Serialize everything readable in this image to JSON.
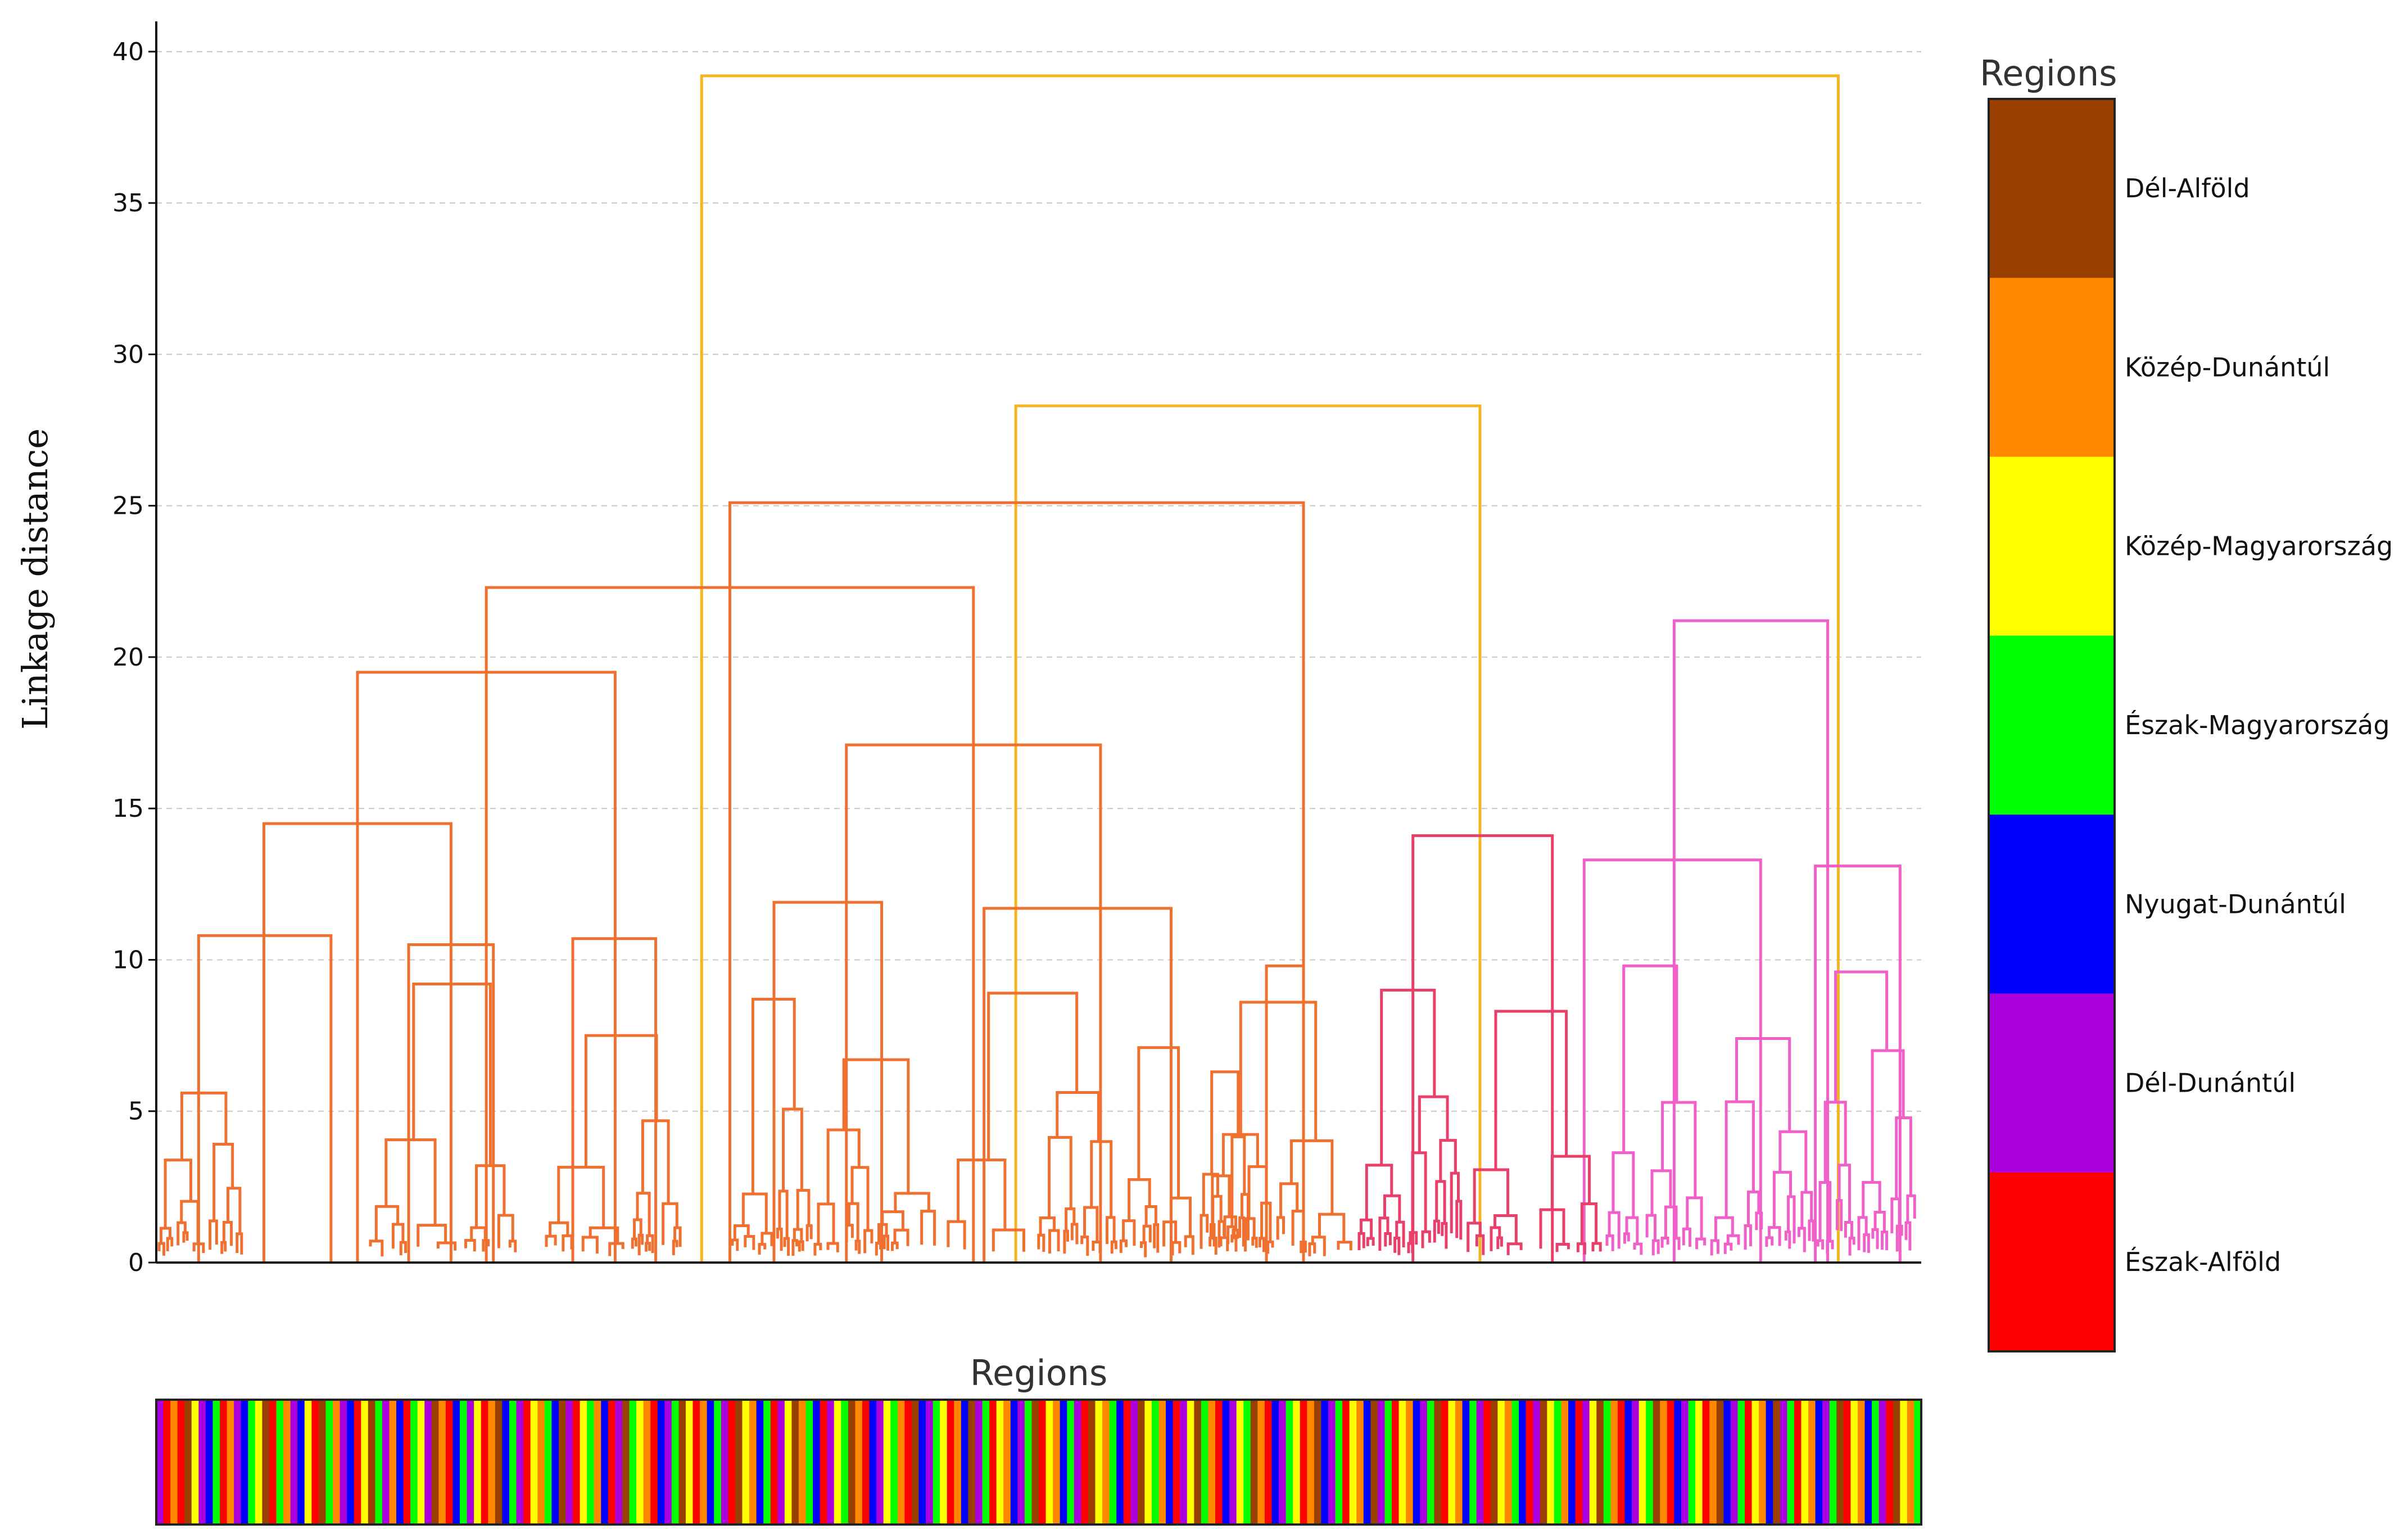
{
  "chart_data": {
    "type": "dendrogram",
    "ylabel": "Linkage distance",
    "ylim": [
      0,
      41
    ],
    "yticks": [
      0,
      5,
      10,
      15,
      20,
      25,
      30,
      35,
      40
    ],
    "grid": true,
    "colors": {
      "above_threshold": "#f5b520",
      "cluster_orange": "#f07030",
      "cluster_red": "#e8406a",
      "cluster_pink": "#f060c8"
    },
    "main_links": [
      {
        "x1": 0.309,
        "x2": 0.953,
        "h": 39.2,
        "color": "above_threshold"
      },
      {
        "x1": 0.487,
        "x2": 0.75,
        "h": 28.3,
        "color": "above_threshold"
      },
      {
        "x1": 0.325,
        "x2": 0.65,
        "h": 25.1,
        "color": "cluster_orange"
      },
      {
        "x1": 0.187,
        "x2": 0.463,
        "h": 22.3,
        "color": "cluster_orange"
      },
      {
        "x1": 0.114,
        "x2": 0.26,
        "h": 19.5,
        "color": "cluster_orange"
      },
      {
        "x1": 0.391,
        "x2": 0.535,
        "h": 17.1,
        "color": "cluster_orange"
      },
      {
        "x1": 0.061,
        "x2": 0.167,
        "h": 14.5,
        "color": "cluster_orange"
      },
      {
        "x1": 0.024,
        "x2": 0.099,
        "h": 10.8,
        "color": "cluster_orange"
      },
      {
        "x1": 0.143,
        "x2": 0.191,
        "h": 10.5,
        "color": "cluster_orange"
      },
      {
        "x1": 0.236,
        "x2": 0.283,
        "h": 10.7,
        "color": "cluster_orange"
      },
      {
        "x1": 0.35,
        "x2": 0.411,
        "h": 11.9,
        "color": "cluster_orange"
      },
      {
        "x1": 0.469,
        "x2": 0.575,
        "h": 11.7,
        "color": "cluster_orange"
      },
      {
        "x1": 0.629,
        "x2": 0.65,
        "h": 9.8,
        "color": "cluster_orange"
      },
      {
        "x1": 0.712,
        "x2": 0.791,
        "h": 14.1,
        "color": "cluster_red"
      },
      {
        "x1": 0.86,
        "x2": 0.947,
        "h": 21.2,
        "color": "cluster_pink"
      },
      {
        "x1": 0.809,
        "x2": 0.909,
        "h": 13.3,
        "color": "cluster_pink"
      },
      {
        "x1": 0.94,
        "x2": 0.988,
        "h": 13.1,
        "color": "cluster_pink"
      }
    ],
    "legend": {
      "title": "Regions",
      "entries": [
        {
          "label": "Dél-Alföld",
          "color": "#994000"
        },
        {
          "label": "Közép-Dunántúl",
          "color": "#ff8800"
        },
        {
          "label": "Közép-Magyarország",
          "color": "#ffff00"
        },
        {
          "label": "Észak-Magyarország",
          "color": "#00ff00"
        },
        {
          "label": "Nyugat-Dunántúl",
          "color": "#0000ff"
        },
        {
          "label": "Dél-Dunántúl",
          "color": "#aa00dd"
        },
        {
          "label": "Észak-Alföld",
          "color": "#ff0000"
        }
      ]
    },
    "region_bar": {
      "title": "Regions",
      "sequence": [
        5,
        6,
        1,
        6,
        0,
        2,
        5,
        4,
        3,
        6,
        1,
        5,
        4,
        3,
        2,
        0,
        6,
        3,
        1,
        5,
        4,
        2,
        6,
        0,
        3,
        1,
        5,
        4,
        6,
        2,
        0,
        3,
        5,
        1,
        4,
        6,
        3,
        2,
        5,
        0,
        1,
        6,
        4,
        3,
        5,
        2,
        6,
        1,
        0,
        4,
        3,
        5,
        6,
        2,
        1,
        3,
        4,
        0,
        5,
        6,
        2,
        3,
        1,
        4,
        6,
        5,
        0,
        3,
        2,
        1,
        6,
        4,
        5,
        3,
        0,
        2,
        6,
        1,
        4,
        3,
        5,
        6,
        0,
        2,
        1,
        4,
        3,
        6,
        5,
        2,
        0,
        1,
        3,
        4,
        6,
        5,
        2,
        3,
        0,
        1,
        6,
        4,
        5,
        2,
        3,
        1,
        6,
        0,
        4,
        5,
        3,
        2,
        6,
        1,
        4,
        0,
        5,
        3,
        6,
        2,
        1,
        4,
        5,
        3,
        0,
        6,
        2,
        1,
        4,
        3,
        5,
        6,
        0,
        2,
        1,
        3,
        4,
        6,
        5,
        0,
        2,
        3,
        1,
        4,
        6,
        5,
        2,
        0,
        3,
        1,
        6,
        4,
        5,
        2,
        3,
        0,
        1,
        6,
        4,
        5,
        3,
        2,
        6,
        1,
        0,
        4,
        5,
        3,
        6,
        2,
        1,
        4,
        0,
        5,
        3,
        6,
        2,
        1,
        4,
        5,
        3,
        0,
        6,
        2,
        1,
        4,
        3,
        5,
        6,
        0,
        2,
        1,
        3,
        4,
        6,
        5,
        0,
        2,
        3,
        1,
        4,
        6,
        5,
        2,
        0,
        3,
        1,
        6,
        4,
        5,
        2,
        3,
        0,
        1,
        6,
        4,
        5,
        3,
        2,
        6,
        1,
        0,
        4,
        5,
        3,
        6,
        2,
        1,
        4,
        0,
        5,
        3,
        6,
        2,
        1,
        4,
        5,
        3,
        0,
        6,
        2,
        1,
        4,
        3,
        5,
        6,
        0,
        2,
        1,
        3
      ]
    }
  }
}
